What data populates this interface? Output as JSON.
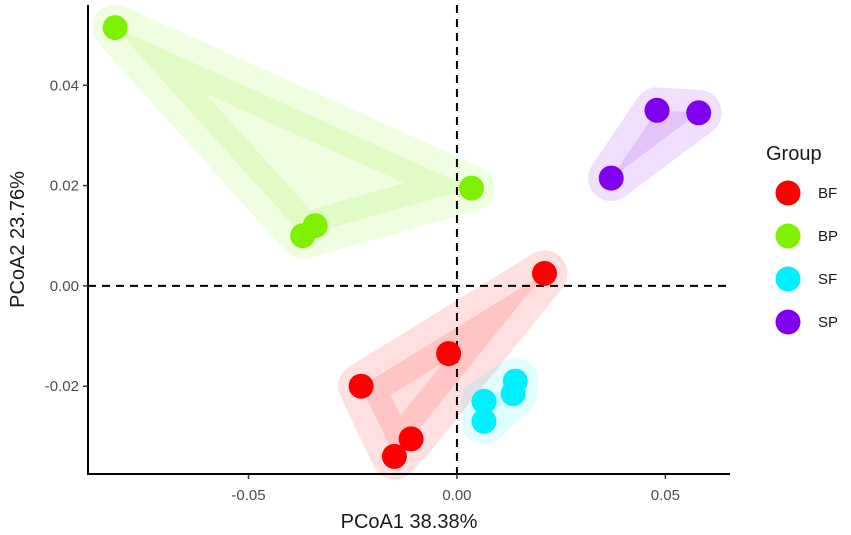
{
  "chart_data": {
    "type": "scatter",
    "title": "",
    "xlabel": "PCoA1 38.38%",
    "ylabel": "PCoA2 23.76%",
    "xlim": [
      -0.0885,
      0.0655
    ],
    "ylim": [
      -0.0375,
      0.056
    ],
    "x_ticks": [
      {
        "value": -0.05,
        "label": "-0.05"
      },
      {
        "value": 0.0,
        "label": "0.00"
      },
      {
        "value": 0.05,
        "label": "0.05"
      }
    ],
    "y_ticks": [
      {
        "value": -0.02,
        "label": "-0.02"
      },
      {
        "value": 0.0,
        "label": "0.00"
      },
      {
        "value": 0.02,
        "label": "0.02"
      },
      {
        "value": 0.04,
        "label": "0.04"
      }
    ],
    "reference_lines": {
      "x": 0,
      "y": 0,
      "style": "dashed"
    },
    "grid": false,
    "legend": {
      "title": "Group",
      "position": "right"
    },
    "series": [
      {
        "name": "BF",
        "color": "#ff0000",
        "points": [
          {
            "x": 0.021,
            "y": 0.0025
          },
          {
            "x": -0.002,
            "y": -0.0135
          },
          {
            "x": -0.023,
            "y": -0.02
          },
          {
            "x": -0.011,
            "y": -0.0305
          },
          {
            "x": -0.015,
            "y": -0.034
          }
        ]
      },
      {
        "name": "BP",
        "color": "#7ff000",
        "points": [
          {
            "x": -0.082,
            "y": 0.0515
          },
          {
            "x": 0.0035,
            "y": 0.0195
          },
          {
            "x": -0.034,
            "y": 0.012
          },
          {
            "x": -0.037,
            "y": 0.01
          }
        ]
      },
      {
        "name": "SF",
        "color": "#00f0ff",
        "points": [
          {
            "x": 0.014,
            "y": -0.019
          },
          {
            "x": 0.0135,
            "y": -0.0215
          },
          {
            "x": 0.0065,
            "y": -0.023
          },
          {
            "x": 0.0065,
            "y": -0.027
          }
        ]
      },
      {
        "name": "SP",
        "color": "#8000f0",
        "points": [
          {
            "x": 0.048,
            "y": 0.035
          },
          {
            "x": 0.058,
            "y": 0.0345
          },
          {
            "x": 0.037,
            "y": 0.0215
          }
        ]
      }
    ],
    "hull_fill_opacity": 0.12
  }
}
